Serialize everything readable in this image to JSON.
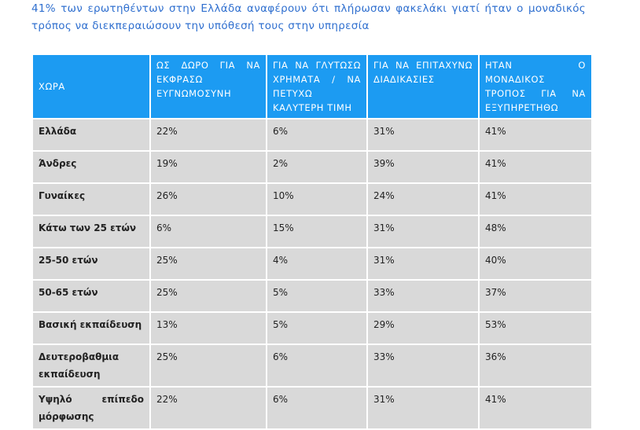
{
  "header": {
    "title": "41% των ερωτηθέντων στην Ελλάδα αναφέρουν ότι πλήρωσαν φακελάκι γιατί ήταν ο μοναδικός τρόπος να διεκπεραιώσουν την υπόθεσή τους στην υπηρεσία"
  },
  "table": {
    "columns": [
      "ΧΩΡΑ",
      "ΩΣ ΔΩΡΟ ΓΙΑ ΝΑ ΕΚΦΡΑΣΩ ΕΥΓΝΩΜΟΣΥΝΗ",
      "ΓΙΑ ΝΑ ΓΛΥΤΩΣΩ ΧΡΗΜΑΤΑ / ΝΑ ΠΕΤΥΧΩ ΚΑΛΥΤΕΡΗ ΤΙΜΗ",
      "ΓΙΑ ΝΑ ΕΠΙΤΑΧΥΝΩ ΔΙΑΔΙΚΑΣΙΕΣ",
      "ΗΤΑΝ Ο ΜΟΝΑΔΙΚΟΣ ΤΡΟΠΟΣ ΓΙΑ ΝΑ ΕΞΥΠΗΡΕΤΗΘΩ"
    ],
    "rows": [
      [
        "Ελλάδα",
        "22%",
        "6%",
        "31%",
        "41%"
      ],
      [
        "Άνδρες",
        "19%",
        "2%",
        "39%",
        "41%"
      ],
      [
        "Γυναίκες",
        "26%",
        "10%",
        "24%",
        "41%"
      ],
      [
        "Κάτω των 25 ετών",
        "6%",
        "15%",
        "31%",
        "48%"
      ],
      [
        "25-50 ετών",
        "25%",
        "4%",
        "31%",
        "40%"
      ],
      [
        "50-65 ετών",
        "25%",
        "5%",
        "33%",
        "37%"
      ],
      [
        "Βασική εκπαίδευση",
        "13%",
        "5%",
        "29%",
        "53%"
      ],
      [
        "Δευτεροβαθμια εκπαίδευση",
        "25%",
        "6%",
        "33%",
        "36%"
      ],
      [
        "Υψηλό επίπεδο μόρφωσης",
        "22%",
        "6%",
        "31%",
        "41%"
      ]
    ]
  }
}
